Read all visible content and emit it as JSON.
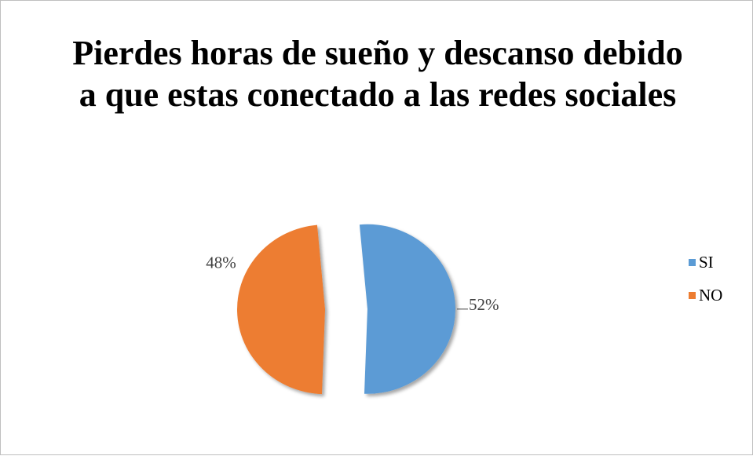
{
  "chart_data": {
    "type": "pie",
    "title": "Pierdes horas de sueño y descanso debido a que estas conectado a las redes sociales",
    "categories": [
      "SI",
      "NO"
    ],
    "values": [
      52,
      48
    ],
    "labels": [
      "52%",
      "48%"
    ],
    "colors": [
      "#5b9bd5",
      "#ed7d31"
    ],
    "exploded": true,
    "legend_position": "right"
  }
}
